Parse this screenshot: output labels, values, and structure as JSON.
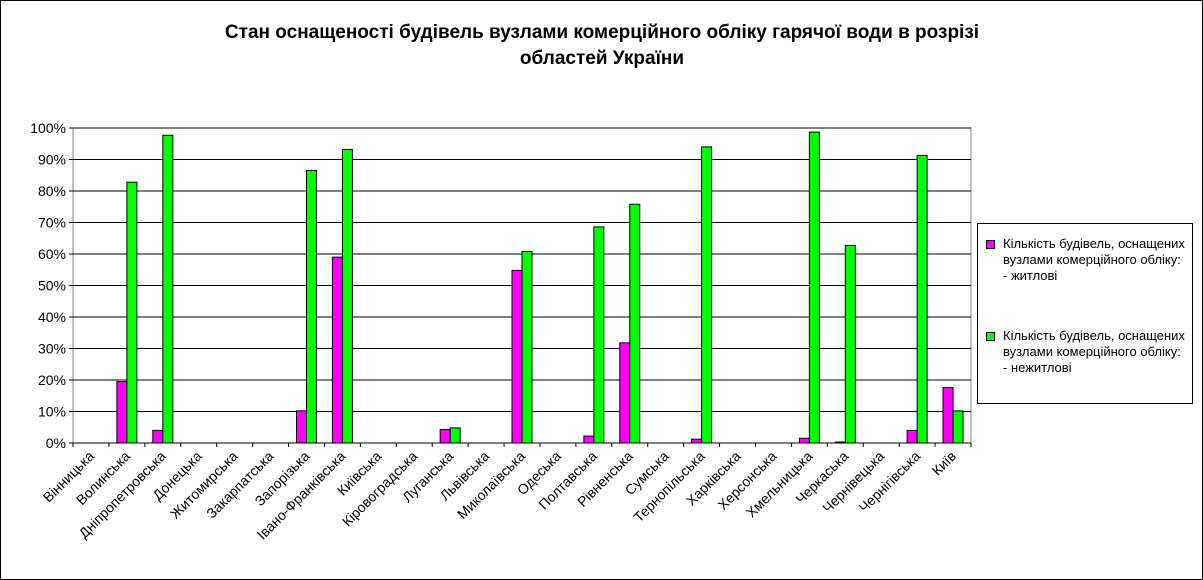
{
  "chart_data": {
    "type": "bar",
    "title_lines": [
      "Стан оснащеності будівель вузлами комерційного обліку гарячої води в розрізі",
      "областей України"
    ],
    "categories": [
      "Вінницька",
      "Волинська",
      "Дніпропетровська",
      "Донецька",
      "Житомирська",
      "Закарпатська",
      "Запорізька",
      "Івано-Франківська",
      "Київська",
      "Кіровоградська",
      "Луганська",
      "Львівська",
      "Миколаївська",
      "Одеська",
      "Полтавська",
      "Рівненська",
      "Сумська",
      "Тернопільська",
      "Харківська",
      "Херсонська",
      "Хмельницька",
      "Черкаська",
      "Чернівецька",
      "Чернігівська",
      "Київ"
    ],
    "series": [
      {
        "name": "Кількість будівель, оснащених вузлами комерційного обліку: - житлові",
        "color": "#FF00FF",
        "values": [
          0,
          19.5,
          4,
          0,
          0,
          0,
          10.2,
          59,
          0,
          0,
          4.3,
          0,
          54.8,
          0,
          2.2,
          31.8,
          0,
          1.2,
          0,
          0,
          1.5,
          0.3,
          0,
          4,
          17.6
        ]
      },
      {
        "name": "Кількість будівель, оснащених вузлами комерційного обліку: - нежитлові",
        "color": "#00FF00",
        "values": [
          0,
          82.8,
          97.7,
          0,
          0,
          0,
          86.5,
          93.2,
          0,
          0,
          4.8,
          0,
          60.8,
          0,
          68.6,
          75.8,
          0,
          94,
          0,
          0,
          98.7,
          62.7,
          0,
          91.3,
          10.2
        ]
      }
    ],
    "ylim": [
      0,
      100
    ],
    "y_ticks": [
      "0%",
      "10%",
      "20%",
      "30%",
      "40%",
      "50%",
      "60%",
      "70%",
      "80%",
      "90%",
      "100%"
    ],
    "grid": true,
    "legend_position": "right"
  }
}
